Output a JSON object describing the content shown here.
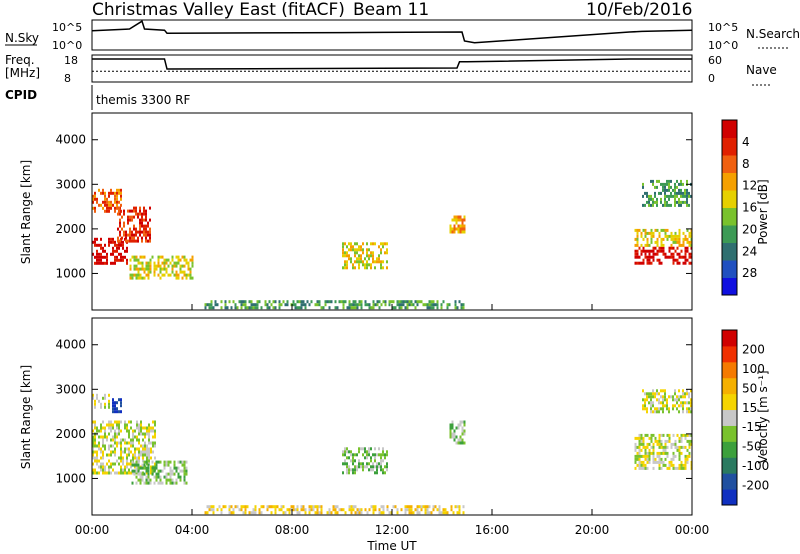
{
  "header": {
    "station": "Christmas Valley East (fitACF)",
    "beam": "Beam 11",
    "date": "10/Feb/2016"
  },
  "strip_labels": {
    "nsky": "N.Sky",
    "nsky_top": "10^5",
    "nsky_bottom": "10^0",
    "freq": "Freq.",
    "freq_unit": "[MHz]",
    "freq_top": "18",
    "freq_bottom": "8",
    "nsearch": "N.Search",
    "nsearch_top": "10^5",
    "nsearch_bottom": "10^0",
    "nave": "Nave",
    "nave_top": "60",
    "nave_bottom": "0",
    "cpid": "CPID",
    "cpid_value": "themis 3300 RF"
  },
  "x_axis": {
    "label": "Time UT",
    "ticks": [
      "00:00",
      "04:00",
      "08:00",
      "12:00",
      "16:00",
      "20:00",
      "00:00"
    ]
  },
  "colors": {
    "power_scale": [
      "#1010e0",
      "#2050c0",
      "#2f6f70",
      "#3c9a55",
      "#79c22d",
      "#e6d000",
      "#f5a000",
      "#f06010",
      "#e02000",
      "#d00000"
    ],
    "velocity_scale": [
      "#d00000",
      "#f03000",
      "#f57a00",
      "#f5b000",
      "#f5d400",
      "#c8c8c8",
      "#79c22d",
      "#3ca03c",
      "#2a7a60",
      "#2050a0",
      "#1030c0"
    ],
    "ground_scatter": "#c0c0c0"
  },
  "chart_data": [
    {
      "type": "line",
      "panel": "N.Sky / N.Search",
      "x_range_hours": [
        0,
        24
      ],
      "series": [
        {
          "name": "N.Sky",
          "x": [
            0,
            1.5,
            2.0,
            2.1,
            2.9,
            3.0,
            10,
            14.8,
            14.9,
            15.3,
            21.5,
            22,
            24
          ],
          "y": [
            3.2,
            3.5,
            4.8,
            3.5,
            3.3,
            2.8,
            2.9,
            3.0,
            1.5,
            1.2,
            3.0,
            3.1,
            3.3
          ]
        }
      ]
    },
    {
      "type": "line",
      "panel": "Freq / Nave",
      "x_range_hours": [
        0,
        24
      ],
      "series": [
        {
          "name": "Freq.",
          "x": [
            0,
            2.9,
            3.0,
            14.6,
            14.7,
            15.0,
            21.5,
            24
          ],
          "y": [
            16.5,
            16.5,
            12.8,
            13.2,
            15.5,
            15.5,
            16.5,
            16.5
          ]
        },
        {
          "name": "Nave",
          "x": [
            0,
            24
          ],
          "y": [
            24,
            24
          ]
        }
      ]
    },
    {
      "type": "heatmap",
      "panel": "Power",
      "xlabel": "",
      "ylabel": "Slant Range [km]",
      "x_range_hours": [
        0,
        24
      ],
      "ylim": [
        180,
        4600
      ],
      "yticks": [
        1000,
        2000,
        3000,
        4000
      ],
      "colorbar": {
        "label": "Power [dB]",
        "ticks": [
          "4",
          "8",
          "12",
          "16",
          "20",
          "24",
          "28"
        ]
      },
      "regions": [
        {
          "t": [
            0.0,
            1.4
          ],
          "r": [
            1200,
            1800
          ],
          "level": 9
        },
        {
          "t": [
            1.0,
            2.3
          ],
          "r": [
            1700,
            2500
          ],
          "level": 8
        },
        {
          "t": [
            0.0,
            1.2
          ],
          "r": [
            2400,
            2900
          ],
          "level": 7
        },
        {
          "t": [
            1.5,
            4.0
          ],
          "r": [
            900,
            1400
          ],
          "level": 5
        },
        {
          "t": [
            10.0,
            11.8
          ],
          "r": [
            1100,
            1700
          ],
          "level": 5
        },
        {
          "t": [
            14.3,
            14.9
          ],
          "r": [
            1900,
            2300
          ],
          "level": 6
        },
        {
          "t": [
            4.5,
            14.9
          ],
          "r": [
            200,
            400
          ],
          "level": 3
        },
        {
          "t": [
            21.7,
            24.0
          ],
          "r": [
            1200,
            1600
          ],
          "level": 9
        },
        {
          "t": [
            21.7,
            24.0
          ],
          "r": [
            1600,
            2000
          ],
          "level": 5
        },
        {
          "t": [
            22.0,
            24.0
          ],
          "r": [
            2500,
            3100
          ],
          "level": 3
        }
      ]
    },
    {
      "type": "heatmap",
      "panel": "Velocity",
      "xlabel": "Time UT",
      "ylabel": "Slant Range [km]",
      "x_range_hours": [
        0,
        24
      ],
      "ylim": [
        180,
        4600
      ],
      "yticks": [
        1000,
        2000,
        3000,
        4000
      ],
      "colorbar": {
        "label": "Velocity [m s⁻¹]",
        "ticks": [
          "200",
          "100",
          "50",
          "15",
          "-15",
          "-50",
          "-100",
          "-200"
        ]
      },
      "regions": [
        {
          "t": [
            0.0,
            2.5
          ],
          "r": [
            1100,
            2300
          ],
          "level": 5
        },
        {
          "t": [
            0.0,
            0.8
          ],
          "r": [
            2600,
            2900
          ],
          "level": 5
        },
        {
          "t": [
            0.8,
            1.2
          ],
          "r": [
            2500,
            2800
          ],
          "level": 10
        },
        {
          "t": [
            1.5,
            3.8
          ],
          "r": [
            900,
            1400
          ],
          "level": 6
        },
        {
          "t": [
            10.0,
            11.8
          ],
          "r": [
            1100,
            1700
          ],
          "level": 6
        },
        {
          "t": [
            14.3,
            14.9
          ],
          "r": [
            1800,
            2300
          ],
          "level": 6
        },
        {
          "t": [
            4.5,
            14.9
          ],
          "r": [
            200,
            400
          ],
          "level": 4
        },
        {
          "t": [
            21.7,
            24.0
          ],
          "r": [
            1200,
            2000
          ],
          "level": 5
        },
        {
          "t": [
            22.0,
            24.0
          ],
          "r": [
            2500,
            3000
          ],
          "level": 5
        }
      ]
    }
  ]
}
